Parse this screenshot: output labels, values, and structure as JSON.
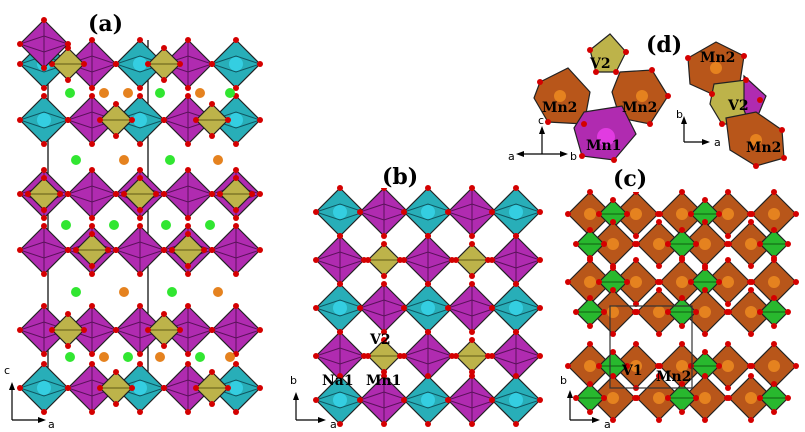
{
  "panels": {
    "a": {
      "label": "(a)",
      "axes": {
        "vertical": "c",
        "horizontal": "a"
      }
    },
    "b": {
      "label": "(b)",
      "axes": {
        "vertical": "b",
        "horizontal": "a"
      },
      "atoms": [
        "V2",
        "Na1",
        "Mn1"
      ]
    },
    "c": {
      "label": "(c)",
      "axes": {
        "vertical": "b",
        "horizontal": "a"
      },
      "atoms": [
        "V1",
        "Mn2"
      ]
    },
    "d": {
      "label": "(d)",
      "left_axes": {
        "vertical": "c",
        "left": "a",
        "right": "b"
      },
      "right_axes": {
        "vertical": "b",
        "horizontal": "a"
      },
      "left_atoms": [
        "V2",
        "Mn2",
        "Mn2",
        "Mn1"
      ],
      "right_atoms": [
        "Mn2",
        "V2",
        "Mn2"
      ]
    }
  },
  "colors": {
    "magenta": "#b02bb0",
    "cyan": "#28aeb8",
    "olive": "#bdb34a",
    "brown": "#b8561a",
    "green": "#28b82e",
    "oxygen": "#d40000",
    "na": "#31e631",
    "orange": "#e5821f"
  }
}
